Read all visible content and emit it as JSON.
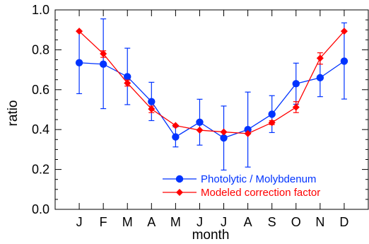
{
  "chart_data": {
    "type": "line",
    "xlabel": "month",
    "ylabel": "ratio",
    "categories": [
      "J",
      "F",
      "M",
      "A",
      "M",
      "J",
      "J",
      "A",
      "S",
      "O",
      "N",
      "D"
    ],
    "ylim": [
      0.0,
      1.0
    ],
    "yticks": [
      "0.0",
      "0.2",
      "0.4",
      "0.6",
      "0.8",
      "1.0"
    ],
    "grid": false,
    "legend_position": "bottom-right",
    "series": [
      {
        "name": "Photolytic / Molybdenum",
        "color": "#0033ff",
        "marker": "circle",
        "values": [
          0.735,
          0.728,
          0.665,
          0.54,
          0.363,
          0.437,
          0.358,
          0.4,
          0.477,
          0.63,
          0.66,
          0.743
        ],
        "err_low": [
          0.58,
          0.505,
          0.525,
          0.445,
          0.313,
          0.322,
          0.197,
          0.212,
          0.385,
          0.527,
          0.565,
          0.553
        ],
        "err_high": [
          0.893,
          0.955,
          0.808,
          0.637,
          0.413,
          0.552,
          0.518,
          0.588,
          0.57,
          0.733,
          0.758,
          0.935
        ]
      },
      {
        "name": "Modeled correction factor",
        "color": "#ff0000",
        "marker": "diamond",
        "values": [
          0.893,
          0.78,
          0.633,
          0.503,
          0.42,
          0.397,
          0.388,
          0.38,
          0.435,
          0.512,
          0.758,
          0.893
        ],
        "err_low": [
          null,
          0.762,
          0.618,
          0.485,
          null,
          null,
          null,
          null,
          0.425,
          0.485,
          0.728,
          null
        ],
        "err_high": [
          null,
          0.795,
          0.648,
          0.518,
          null,
          null,
          null,
          null,
          0.445,
          0.54,
          0.785,
          null
        ]
      }
    ]
  }
}
